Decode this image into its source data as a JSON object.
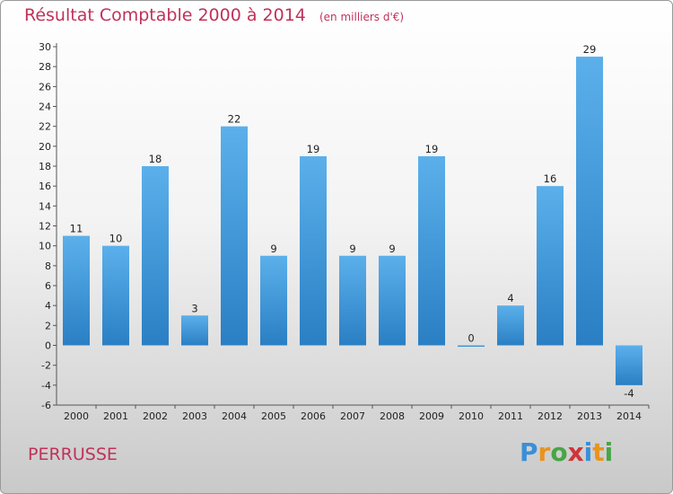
{
  "title": "Résultat Comptable 2000 à 2014",
  "subtitle": "(en milliers d'€)",
  "place": "PERRUSSE",
  "logo": {
    "letters": [
      "P",
      "r",
      "o",
      "x",
      "i",
      "t",
      "i"
    ],
    "colors": [
      "#3a8fd8",
      "#e8941e",
      "#47a646",
      "#d0343a",
      "#3a8fd8",
      "#e8941e",
      "#47a646"
    ]
  },
  "colors": {
    "bar_top": "#5bb0eb",
    "bar_bottom": "#2a7fc4",
    "title": "#c0325a"
  },
  "chart_data": {
    "type": "bar",
    "categories": [
      "2000",
      "2001",
      "2002",
      "2003",
      "2004",
      "2005",
      "2006",
      "2007",
      "2008",
      "2009",
      "2010",
      "2011",
      "2012",
      "2013",
      "2014"
    ],
    "values": [
      11,
      10,
      18,
      3,
      22,
      9,
      19,
      9,
      9,
      19,
      0,
      4,
      16,
      29,
      -4
    ],
    "ylim": [
      -6,
      30
    ],
    "yticks": [
      30,
      28,
      26,
      24,
      22,
      20,
      18,
      16,
      14,
      12,
      10,
      8,
      6,
      4,
      2,
      0,
      -2,
      -4,
      -6
    ],
    "grid": false,
    "legend": "none"
  }
}
